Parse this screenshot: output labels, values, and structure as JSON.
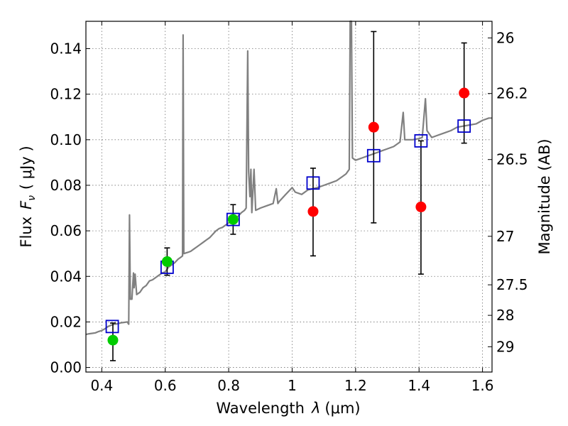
{
  "chart_data": {
    "type": "scatter",
    "xlabel_prefix": "Wavelength",
    "xlabel_symbol": "λ",
    "xlabel_unit": "(μm)",
    "ylabel_prefix": "Flux",
    "ylabel_symbol": "F",
    "ylabel_sub": "ν",
    "ylabel_unit": "( μJy )",
    "y2label": "Magnitude (AB)",
    "xlim": [
      0.35,
      1.63
    ],
    "ylim": [
      -0.002,
      0.152
    ],
    "xticks": [
      0.4,
      0.6,
      0.8,
      1.0,
      1.2,
      1.4,
      1.6
    ],
    "xtick_labels": [
      "0.4",
      "0.6",
      "0.8",
      "1",
      "1.2",
      "1.4",
      "1.6"
    ],
    "yticks": [
      0.0,
      0.02,
      0.04,
      0.06,
      0.08,
      0.1,
      0.12,
      0.14
    ],
    "ytick_labels": [
      "0.00",
      "0.02",
      "0.04",
      "0.06",
      "0.08",
      "0.10",
      "0.12",
      "0.14"
    ],
    "y2ticks": [
      {
        "flux": 0.1447,
        "label": "26"
      },
      {
        "flux": 0.1203,
        "label": "26.2"
      },
      {
        "flux": 0.0913,
        "label": "26.5"
      },
      {
        "flux": 0.0576,
        "label": "27"
      },
      {
        "flux": 0.0363,
        "label": "27.5"
      },
      {
        "flux": 0.0229,
        "label": "28"
      },
      {
        "flux": 0.0091,
        "label": "29"
      }
    ],
    "grid": true,
    "colors": {
      "spectrum": "#808080",
      "model": "#0000cc",
      "green": "#00cc00",
      "red": "#ff0000",
      "errorbar": "#000000"
    },
    "spectrum": [
      [
        0.35,
        0.0145
      ],
      [
        0.36,
        0.0148
      ],
      [
        0.37,
        0.015
      ],
      [
        0.38,
        0.0152
      ],
      [
        0.39,
        0.0158
      ],
      [
        0.4,
        0.0162
      ],
      [
        0.41,
        0.017
      ],
      [
        0.42,
        0.018
      ],
      [
        0.43,
        0.0186
      ],
      [
        0.44,
        0.019
      ],
      [
        0.45,
        0.0192
      ],
      [
        0.46,
        0.0196
      ],
      [
        0.47,
        0.0198
      ],
      [
        0.48,
        0.02
      ],
      [
        0.485,
        0.019
      ],
      [
        0.4875,
        0.067
      ],
      [
        0.49,
        0.03
      ],
      [
        0.495,
        0.03
      ],
      [
        0.5,
        0.0415
      ],
      [
        0.502,
        0.035
      ],
      [
        0.505,
        0.041
      ],
      [
        0.51,
        0.032
      ],
      [
        0.52,
        0.033
      ],
      [
        0.53,
        0.035
      ],
      [
        0.54,
        0.036
      ],
      [
        0.55,
        0.038
      ],
      [
        0.56,
        0.0385
      ],
      [
        0.57,
        0.0395
      ],
      [
        0.58,
        0.0405
      ],
      [
        0.59,
        0.0415
      ],
      [
        0.6,
        0.042
      ],
      [
        0.61,
        0.044
      ],
      [
        0.62,
        0.045
      ],
      [
        0.63,
        0.046
      ],
      [
        0.64,
        0.0475
      ],
      [
        0.65,
        0.0485
      ],
      [
        0.6545,
        0.049
      ],
      [
        0.6563,
        0.146
      ],
      [
        0.6585,
        0.05
      ],
      [
        0.67,
        0.0505
      ],
      [
        0.68,
        0.051
      ],
      [
        0.69,
        0.052
      ],
      [
        0.7,
        0.053
      ],
      [
        0.71,
        0.054
      ],
      [
        0.72,
        0.055
      ],
      [
        0.73,
        0.056
      ],
      [
        0.74,
        0.057
      ],
      [
        0.75,
        0.0585
      ],
      [
        0.76,
        0.06
      ],
      [
        0.77,
        0.061
      ],
      [
        0.78,
        0.0615
      ],
      [
        0.79,
        0.0625
      ],
      [
        0.8,
        0.0635
      ],
      [
        0.81,
        0.0645
      ],
      [
        0.82,
        0.065
      ],
      [
        0.83,
        0.0665
      ],
      [
        0.84,
        0.068
      ],
      [
        0.85,
        0.069
      ],
      [
        0.855,
        0.07
      ],
      [
        0.86,
        0.139
      ],
      [
        0.863,
        0.086
      ],
      [
        0.867,
        0.075
      ],
      [
        0.87,
        0.087
      ],
      [
        0.873,
        0.068
      ],
      [
        0.88,
        0.087
      ],
      [
        0.885,
        0.069
      ],
      [
        0.9,
        0.07
      ],
      [
        0.92,
        0.071
      ],
      [
        0.94,
        0.072
      ],
      [
        0.95,
        0.0785
      ],
      [
        0.955,
        0.072
      ],
      [
        0.96,
        0.073
      ],
      [
        0.98,
        0.076
      ],
      [
        1.0,
        0.079
      ],
      [
        1.01,
        0.077
      ],
      [
        1.03,
        0.076
      ],
      [
        1.05,
        0.078
      ],
      [
        1.08,
        0.079
      ],
      [
        1.1,
        0.08
      ],
      [
        1.12,
        0.081
      ],
      [
        1.14,
        0.082
      ],
      [
        1.16,
        0.084
      ],
      [
        1.17,
        0.085
      ],
      [
        1.18,
        0.087
      ],
      [
        1.183,
        0.152
      ],
      [
        1.187,
        0.152
      ],
      [
        1.19,
        0.092
      ],
      [
        1.2,
        0.091
      ],
      [
        1.22,
        0.092
      ],
      [
        1.24,
        0.093
      ],
      [
        1.26,
        0.094
      ],
      [
        1.28,
        0.095
      ],
      [
        1.3,
        0.096
      ],
      [
        1.32,
        0.097
      ],
      [
        1.34,
        0.099
      ],
      [
        1.35,
        0.112
      ],
      [
        1.355,
        0.1
      ],
      [
        1.38,
        0.1
      ],
      [
        1.4,
        0.1005
      ],
      [
        1.41,
        0.101
      ],
      [
        1.42,
        0.118
      ],
      [
        1.425,
        0.104
      ],
      [
        1.44,
        0.101
      ],
      [
        1.46,
        0.102
      ],
      [
        1.48,
        0.103
      ],
      [
        1.5,
        0.104
      ],
      [
        1.52,
        0.1055
      ],
      [
        1.54,
        0.106
      ],
      [
        1.56,
        0.1065
      ],
      [
        1.58,
        0.107
      ],
      [
        1.6,
        0.1085
      ],
      [
        1.62,
        0.1095
      ],
      [
        1.63,
        0.1095
      ]
    ],
    "model_points": [
      {
        "x": 0.433,
        "y": 0.018
      },
      {
        "x": 0.606,
        "y": 0.044
      },
      {
        "x": 0.814,
        "y": 0.065
      },
      {
        "x": 1.066,
        "y": 0.081
      },
      {
        "x": 1.257,
        "y": 0.093
      },
      {
        "x": 1.406,
        "y": 0.0995
      },
      {
        "x": 1.542,
        "y": 0.106
      }
    ],
    "observed": [
      {
        "x": 0.435,
        "y": 0.012,
        "yerr_lo": 0.003,
        "yerr_hi": 0.0195,
        "color": "green"
      },
      {
        "x": 0.606,
        "y": 0.0465,
        "yerr_lo": 0.0405,
        "yerr_hi": 0.0525,
        "color": "green"
      },
      {
        "x": 0.814,
        "y": 0.065,
        "yerr_lo": 0.0585,
        "yerr_hi": 0.0715,
        "color": "green"
      },
      {
        "x": 1.066,
        "y": 0.0685,
        "yerr_lo": 0.049,
        "yerr_hi": 0.0875,
        "color": "red"
      },
      {
        "x": 1.257,
        "y": 0.1055,
        "yerr_lo": 0.0635,
        "yerr_hi": 0.1475,
        "color": "red"
      },
      {
        "x": 1.406,
        "y": 0.0705,
        "yerr_lo": 0.041,
        "yerr_hi": 0.0995,
        "color": "red"
      },
      {
        "x": 1.542,
        "y": 0.1205,
        "yerr_lo": 0.0985,
        "yerr_hi": 0.1425,
        "color": "red"
      }
    ]
  }
}
